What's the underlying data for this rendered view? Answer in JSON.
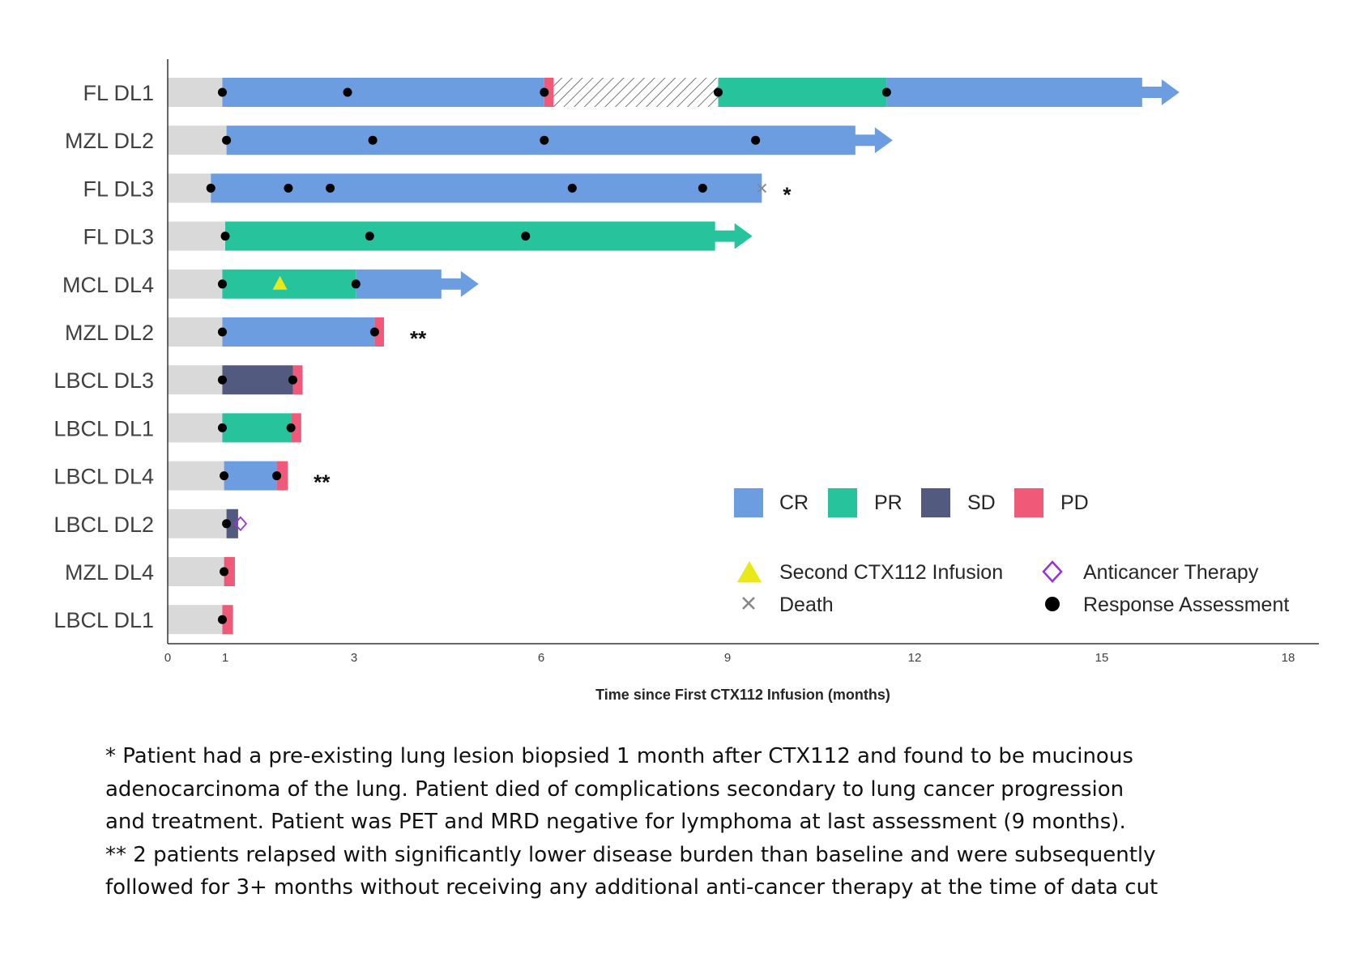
{
  "chart_data": {
    "type": "swimmer",
    "xlabel": "Time since First CTX112 Infusion (months)",
    "xlim": [
      0,
      18
    ],
    "xticks": [
      0,
      1,
      3,
      6,
      9,
      12,
      15,
      18
    ],
    "colors": {
      "baseline": "#d9d9d9",
      "CR": "#6b9de0",
      "PR": "#27c39c",
      "SD": "#525a80",
      "PD": "#f05a78",
      "triangle": "#e8e81a",
      "death": "#888888",
      "diamond": "#9b30d9",
      "dot": "#000000"
    },
    "rows": [
      {
        "label": "FL DL1",
        "segments": [
          [
            "baseline",
            0,
            0.95
          ],
          [
            "CR",
            0.95,
            6.05
          ],
          [
            "PD",
            6.05,
            6.2
          ],
          [
            "hatch",
            6.2,
            8.85
          ],
          [
            "PR",
            8.85,
            11.55
          ],
          [
            "CR",
            11.55,
            15.65
          ]
        ],
        "arrow": true,
        "assessments": [
          0.95,
          2.9,
          6.05,
          8.85,
          11.55
        ]
      },
      {
        "label": "MZL DL2",
        "segments": [
          [
            "baseline",
            0,
            1.02
          ],
          [
            "CR",
            1.02,
            11.05
          ]
        ],
        "arrow": true,
        "assessments": [
          1.02,
          3.3,
          6.05,
          9.45
        ]
      },
      {
        "label": "FL DL3",
        "segments": [
          [
            "baseline",
            0,
            0.75
          ],
          [
            "CR",
            0.75,
            9.55
          ]
        ],
        "arrow": false,
        "assessments": [
          0.75,
          1.98,
          2.63,
          6.5,
          8.6
        ],
        "death": 9.55,
        "note": "*"
      },
      {
        "label": "FL DL3",
        "segments": [
          [
            "baseline",
            0,
            1.0
          ],
          [
            "PR",
            1.0,
            8.8
          ]
        ],
        "arrow": true,
        "assessments": [
          1.0,
          3.25,
          5.75
        ]
      },
      {
        "label": "MCL DL4",
        "segments": [
          [
            "baseline",
            0,
            0.95
          ],
          [
            "PR",
            0.95,
            3.03
          ],
          [
            "CR",
            3.03,
            4.4
          ]
        ],
        "arrow": true,
        "assessments": [
          0.95,
          3.03
        ],
        "triangle": 1.85
      },
      {
        "label": "MZL DL2",
        "segments": [
          [
            "baseline",
            0,
            0.95
          ],
          [
            "CR",
            0.95,
            3.33
          ],
          [
            "PD",
            3.33,
            3.48
          ]
        ],
        "arrow": false,
        "assessments": [
          0.95,
          3.33
        ],
        "note": "**"
      },
      {
        "label": "LBCL DL3",
        "segments": [
          [
            "baseline",
            0,
            0.95
          ],
          [
            "SD",
            0.95,
            2.05
          ],
          [
            "PD",
            2.05,
            2.2
          ]
        ],
        "arrow": false,
        "assessments": [
          0.95,
          2.05
        ]
      },
      {
        "label": "LBCL DL1",
        "segments": [
          [
            "baseline",
            0,
            0.95
          ],
          [
            "PR",
            0.95,
            2.02
          ],
          [
            "PD",
            2.02,
            2.18
          ]
        ],
        "arrow": false,
        "assessments": [
          0.95,
          2.02
        ]
      },
      {
        "label": "LBCL DL4",
        "segments": [
          [
            "baseline",
            0,
            0.98
          ],
          [
            "CR",
            0.98,
            1.8
          ],
          [
            "PD",
            1.8,
            1.97
          ]
        ],
        "arrow": false,
        "assessments": [
          0.98,
          1.8
        ],
        "note": "**"
      },
      {
        "label": "LBCL DL2",
        "segments": [
          [
            "baseline",
            0,
            1.02
          ],
          [
            "SD",
            1.02,
            1.2
          ]
        ],
        "arrow": false,
        "assessments": [
          1.02
        ],
        "diamond": 1.2
      },
      {
        "label": "MZL DL4",
        "segments": [
          [
            "baseline",
            0,
            0.98
          ],
          [
            "PD",
            0.98,
            1.15
          ]
        ],
        "arrow": false,
        "assessments": [
          0.98
        ]
      },
      {
        "label": "LBCL DL1",
        "segments": [
          [
            "baseline",
            0,
            0.95
          ],
          [
            "PD",
            0.95,
            1.12
          ]
        ],
        "arrow": false,
        "assessments": [
          0.95
        ]
      }
    ],
    "legend": {
      "CR": "CR",
      "PR": "PR",
      "SD": "SD",
      "PD": "PD",
      "second_infusion": "Second CTX112 Infusion",
      "anticancer": "Anticancer Therapy",
      "death": "Death",
      "response": "Response Assessment"
    }
  },
  "footnotes": {
    "single_1": "* Patient had a pre-existing lung lesion biopsied 1 month after CTX112 and found to be mucinous",
    "single_2": "adenocarcinoma of the lung. Patient died of complications secondary to lung cancer progression",
    "single_3": "and treatment. Patient was PET and MRD negative for lymphoma at last assessment (9 months).",
    "double_1": "** 2 patients relapsed with significantly lower disease burden than baseline and were subsequently",
    "double_2": "followed for 3+ months without receiving any additional anti-cancer therapy at the time of data cut"
  }
}
